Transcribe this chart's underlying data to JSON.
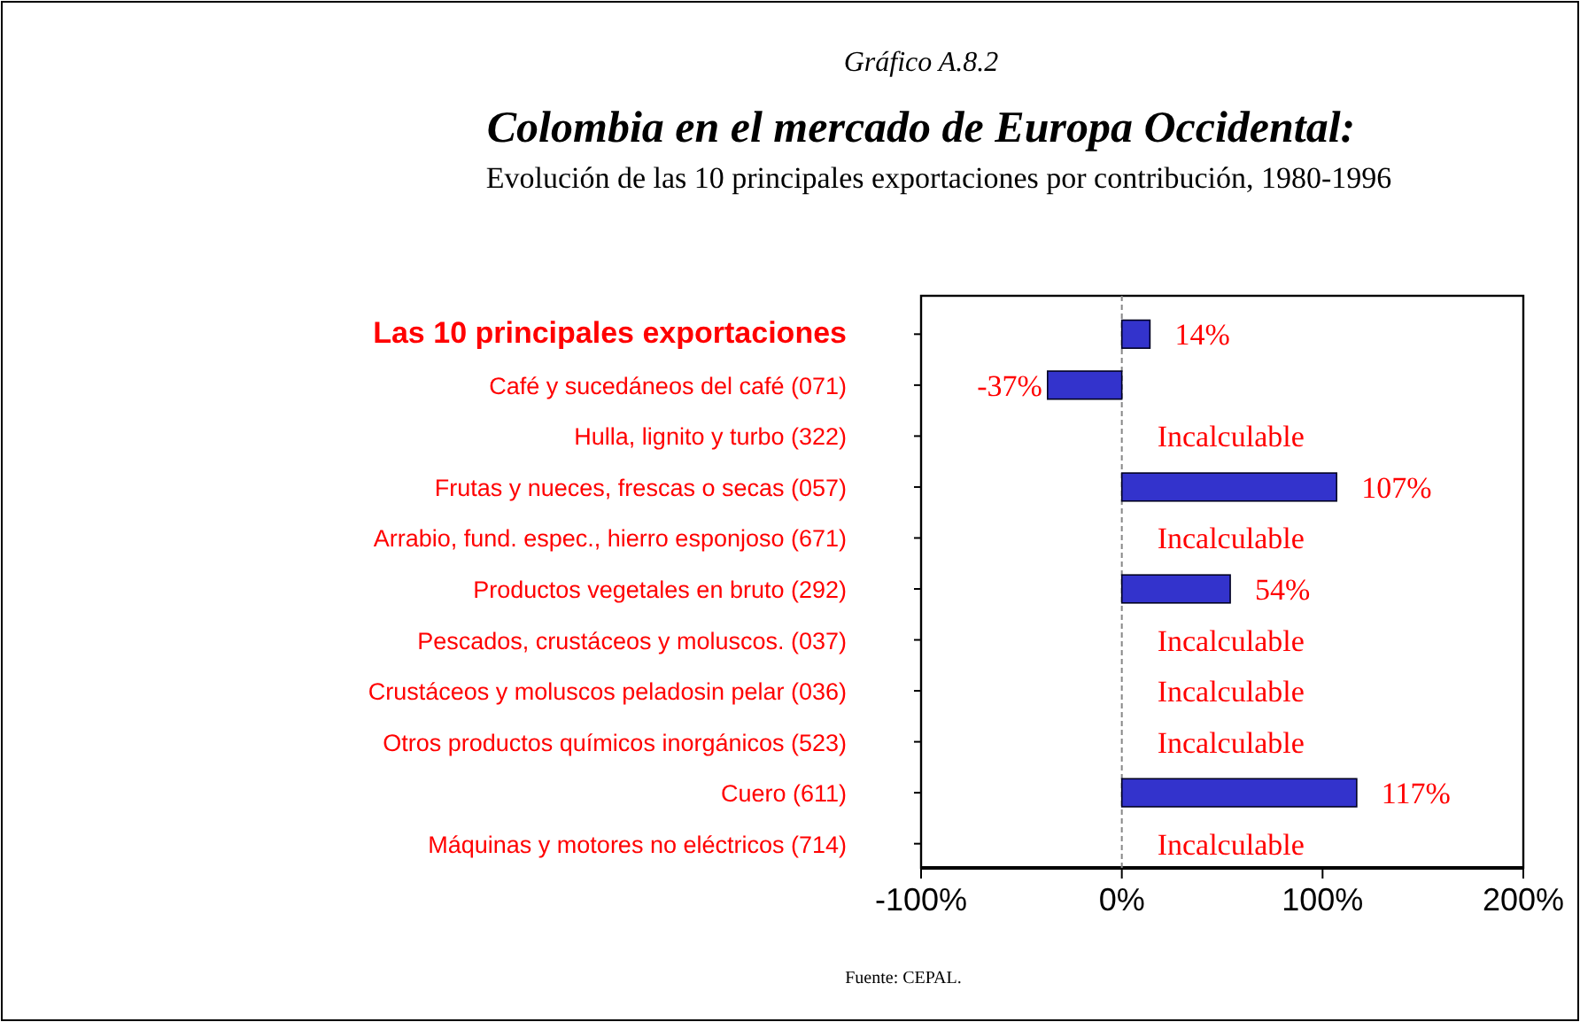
{
  "chart_data": {
    "type": "bar",
    "orientation": "horizontal",
    "title": "Colombia en el mercado de Europa Occidental:",
    "subtitle": "Evolución de las 10 principales exportaciones por contribución, 1980-1996",
    "annotations": [
      "Gráfico A.8.2",
      "Fuente: CEPAL."
    ],
    "categories": [
      "Las 10 principales exportaciones",
      "Café y sucedáneos del café (071)",
      "Hulla, lignito y turbo (322)",
      "Frutas y nueces, frescas o secas (057)",
      "Arrabio, fund. espec., hierro esponjoso (671)",
      "Productos vegetales en bruto (292)",
      "Pescados, crustáceos y moluscos. (037)",
      "Crustáceos y moluscos  peladosin pelar (036)",
      "Otros productos químicos inorgánicos (523)",
      "Cuero (611)",
      "Máquinas y motores no eléctricos  (714)"
    ],
    "values": [
      14,
      -37,
      null,
      107,
      null,
      54,
      null,
      null,
      null,
      117,
      null
    ],
    "value_labels": [
      "14%",
      "-37%",
      "Incalculable",
      "107%",
      "Incalculable",
      "54%",
      "Incalculable",
      "Incalculable",
      "Incalculable",
      "117%",
      "Incalculable"
    ],
    "color": "#3333cc",
    "xlim": [
      -100,
      200
    ],
    "xticks": [
      {
        "value": -100,
        "label": "-100%"
      },
      {
        "value": 0,
        "label": "0%"
      },
      {
        "value": 100,
        "label": "100%"
      },
      {
        "value": 200,
        "label": "200%"
      }
    ],
    "ref_lines": [
      {
        "axis": "x",
        "value": 0,
        "line_style": "dashed",
        "color": "#888888"
      }
    ],
    "grid": false
  }
}
